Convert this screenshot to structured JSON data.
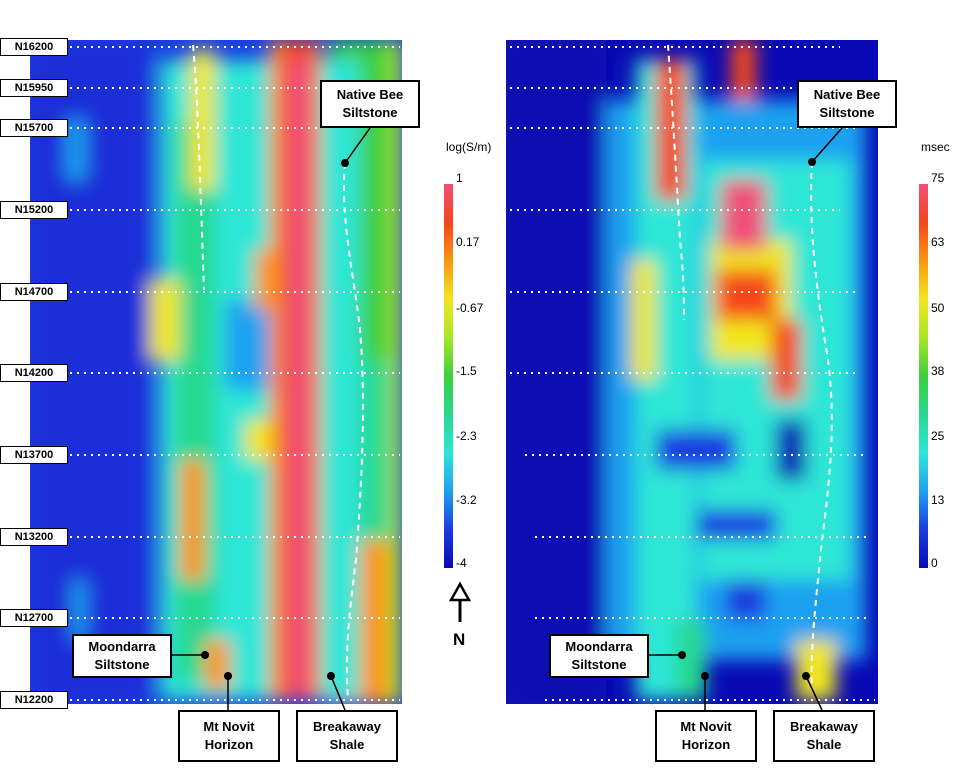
{
  "northings": [
    "N16200",
    "N15950",
    "N15700",
    "N15200",
    "N14700",
    "N14200",
    "N13700",
    "N13200",
    "N12700",
    "N12200"
  ],
  "left_panel": {
    "colorbar_title": "log(S/m)",
    "colorbar_ticks": [
      "1",
      "0.17",
      "-0.67",
      "-1.5",
      "-2.3",
      "-3.2",
      "-4"
    ],
    "callouts": {
      "native_bee": [
        "Native Bee",
        "Siltstone"
      ],
      "moondarra": [
        "Moondarra",
        "Siltstone"
      ],
      "mt_novit": [
        "Mt Novit",
        "Horizon"
      ],
      "breakaway": [
        "Breakaway",
        "Shale"
      ]
    }
  },
  "right_panel": {
    "colorbar_title": "msec",
    "colorbar_ticks": [
      "75",
      "63",
      "50",
      "38",
      "25",
      "13",
      "0"
    ],
    "callouts": {
      "native_bee": [
        "Native Bee",
        "Siltstone"
      ],
      "moondarra": [
        "Moondarra",
        "Siltstone"
      ],
      "mt_novit": [
        "Mt Novit",
        "Horizon"
      ],
      "breakaway": [
        "Breakaway",
        "Shale"
      ]
    }
  },
  "north_arrow": {
    "label": "N"
  },
  "colors": {
    "colormap": [
      "#0a0ab4",
      "#1a3ce0",
      "#1fa0f0",
      "#2ee6d6",
      "#28d890",
      "#3ccf3c",
      "#a8e628",
      "#f0e61e",
      "#fa9614",
      "#f5461e",
      "#f05078"
    ],
    "background": "#ffffff"
  }
}
